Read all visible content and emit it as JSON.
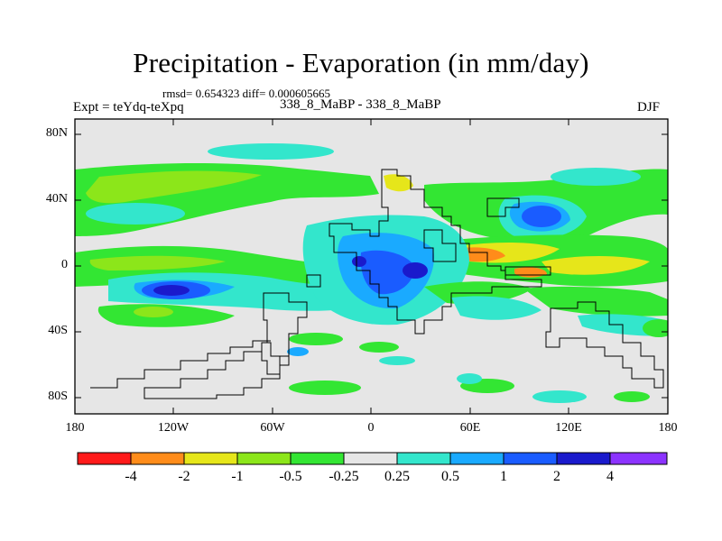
{
  "title": "Precipitation - Evaporation (in mm/day)",
  "stats": "rmsd= 0.654323  diff= 0.000605665",
  "experiment": "Expt = teYdq-teXpq",
  "comparison": "338_8_MaBP - 338_8_MaBP",
  "season": "DJF",
  "y_axis": [
    "80N",
    "40N",
    "0",
    "40S",
    "80S"
  ],
  "x_axis": [
    "180",
    "120W",
    "60W",
    "0",
    "60E",
    "120E",
    "180"
  ],
  "colorbar": {
    "labels": [
      "-4",
      "-2",
      "-1",
      "-0.5",
      "-0.25",
      "0.25",
      "0.5",
      "1",
      "2",
      "4"
    ],
    "colors": [
      "#ff1a1a",
      "#ff8c1a",
      "#e6e61a",
      "#8ce61a",
      "#33e633",
      "#e6e6e6",
      "#33e6cc",
      "#1aaaff",
      "#1a5cff",
      "#1a1acc",
      "#8c33ff"
    ]
  },
  "palette": {
    "neutral": "#e6e6e6",
    "cyan": "#33e6cc",
    "lightblue": "#1aaaff",
    "blue": "#1a5cff",
    "darkblue": "#1a1acc",
    "green": "#33e633",
    "lightgreen": "#8ce61a",
    "yellow": "#e6e61a",
    "orange": "#ff8c1a",
    "red": "#ff1a1a"
  }
}
